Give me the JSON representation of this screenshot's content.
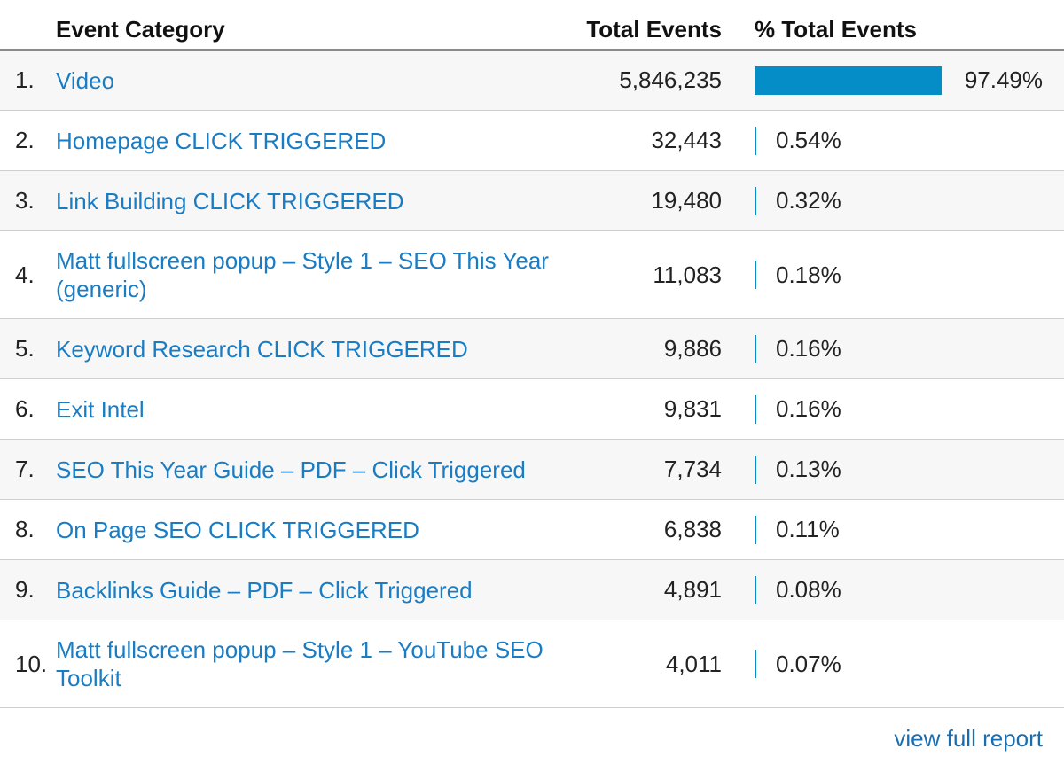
{
  "header": {
    "category_label": "Event Category",
    "total_label": "Total Events",
    "pct_label": "% Total Events"
  },
  "rows": [
    {
      "rank": "1.",
      "name": "Video",
      "total": "5,846,235",
      "pct": "97.49%",
      "share": 97.49
    },
    {
      "rank": "2.",
      "name": "Homepage CLICK TRIGGERED",
      "total": "32,443",
      "pct": "0.54%",
      "share": 0.54
    },
    {
      "rank": "3.",
      "name": "Link Building CLICK TRIGGERED",
      "total": "19,480",
      "pct": "0.32%",
      "share": 0.32
    },
    {
      "rank": "4.",
      "name": "Matt fullscreen popup – Style 1 – SEO This Year (generic)",
      "total": "11,083",
      "pct": "0.18%",
      "share": 0.18
    },
    {
      "rank": "5.",
      "name": "Keyword Research CLICK TRIGGERED",
      "total": "9,886",
      "pct": "0.16%",
      "share": 0.16
    },
    {
      "rank": "6.",
      "name": "Exit Intel",
      "total": "9,831",
      "pct": "0.16%",
      "share": 0.16
    },
    {
      "rank": "7.",
      "name": "SEO This Year Guide – PDF – Click Triggered",
      "total": "7,734",
      "pct": "0.13%",
      "share": 0.13
    },
    {
      "rank": "8.",
      "name": "On Page SEO CLICK TRIGGERED",
      "total": "6,838",
      "pct": "0.11%",
      "share": 0.11
    },
    {
      "rank": "9.",
      "name": "Backlinks Guide – PDF – Click Triggered",
      "total": "4,891",
      "pct": "0.08%",
      "share": 0.08
    },
    {
      "rank": "10.",
      "name": "Matt fullscreen popup – Style 1 – YouTube SEO Toolkit",
      "total": "4,011",
      "pct": "0.07%",
      "share": 0.07
    }
  ],
  "footer": {
    "link_label": "view full report"
  },
  "colors": {
    "link": "#1a7dc4",
    "bar": "#058dc7"
  }
}
